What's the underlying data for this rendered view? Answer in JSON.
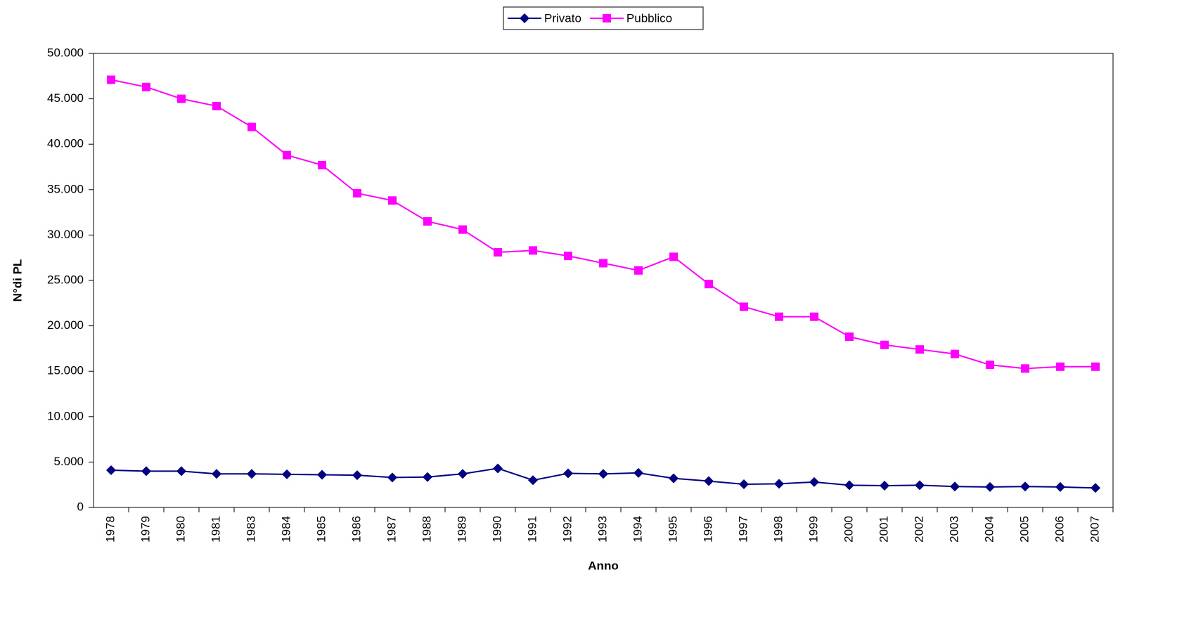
{
  "chart_data": {
    "type": "line",
    "x_label": "Anno",
    "y_label": "N°di PL",
    "categories": [
      "1978",
      "1979",
      "1980",
      "1981",
      "1983",
      "1984",
      "1985",
      "1986",
      "1987",
      "1988",
      "1989",
      "1990",
      "1991",
      "1992",
      "1993",
      "1994",
      "1995",
      "1996",
      "1997",
      "1998",
      "1999",
      "2000",
      "2001",
      "2002",
      "2003",
      "2004",
      "2005",
      "2006",
      "2007"
    ],
    "series": [
      {
        "name": "Privato",
        "color": "#000080",
        "marker": "diamond",
        "values": [
          4100,
          4000,
          4000,
          3700,
          3700,
          3650,
          3600,
          3550,
          3300,
          3350,
          3700,
          4300,
          3000,
          3750,
          3700,
          3800,
          3200,
          2900,
          2550,
          2600,
          2800,
          2450,
          2400,
          2450,
          2300,
          2250,
          2300,
          2250,
          2150
        ]
      },
      {
        "name": "Pubblico",
        "color": "#ff00ff",
        "marker": "square",
        "values": [
          47100,
          46300,
          45000,
          44200,
          41900,
          38800,
          37700,
          34600,
          33800,
          31500,
          30600,
          28100,
          28300,
          27700,
          26900,
          26100,
          27600,
          24600,
          22100,
          21000,
          21000,
          18800,
          17900,
          17400,
          16900,
          15700,
          15300,
          15500,
          15500
        ]
      }
    ],
    "ylim": [
      0,
      50000
    ],
    "yticks": [
      0,
      {
        "value": 5000,
        "label": "5.000"
      },
      {
        "value": 10000,
        "label": "10.000"
      },
      {
        "value": 15000,
        "label": "15.000"
      },
      {
        "value": 20000,
        "label": "20.000"
      },
      {
        "value": 25000,
        "label": "25.000"
      },
      {
        "value": 30000,
        "label": "30.000"
      },
      {
        "value": 35000,
        "label": "35.000"
      },
      {
        "value": 40000,
        "label": "40.000"
      },
      {
        "value": 45000,
        "label": "45.000"
      },
      {
        "value": 50000,
        "label": "50.000"
      }
    ],
    "grid": false,
    "legend": "top"
  }
}
